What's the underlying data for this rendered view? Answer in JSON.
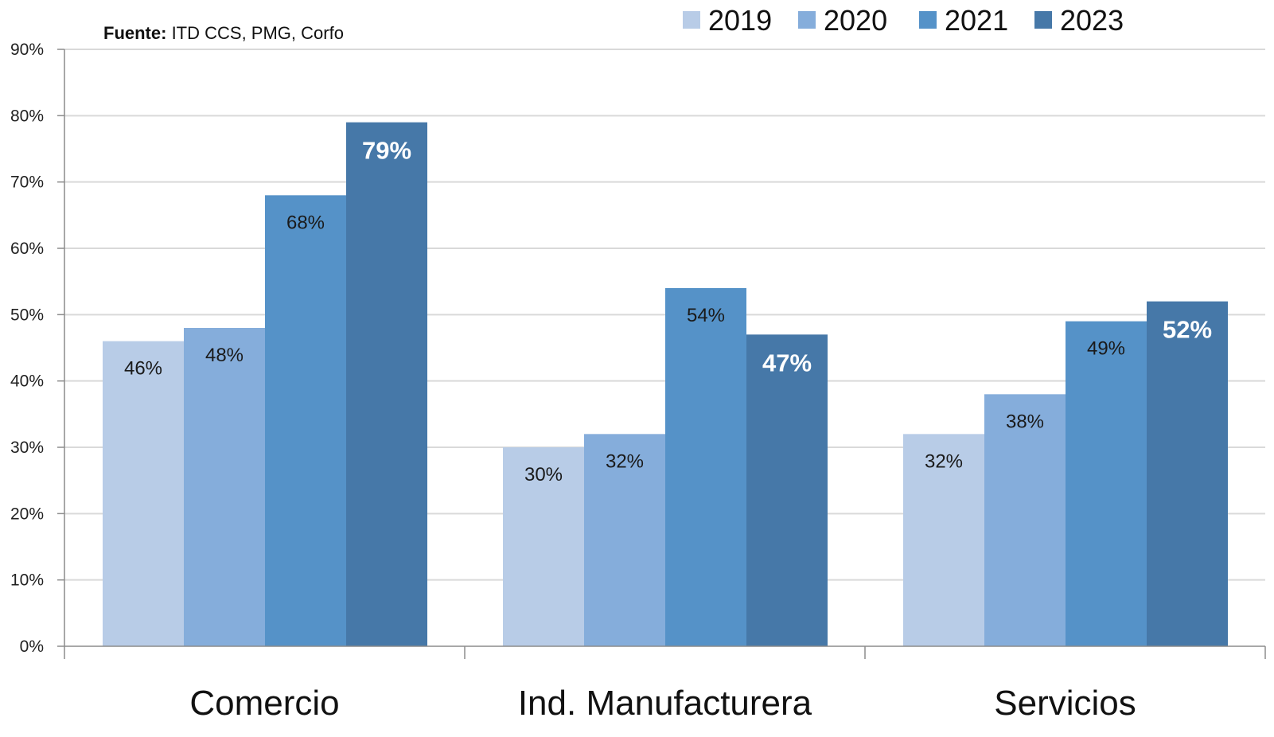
{
  "source": {
    "prefix": "Fuente:",
    "text": " ITD CCS, PMG, Corfo"
  },
  "colors": [
    "#b8cce7",
    "#85addb",
    "#5592c8",
    "#4678a8"
  ],
  "chart_data": {
    "type": "bar",
    "categories": [
      "Comercio",
      "Ind. Manufacturera",
      "Servicios"
    ],
    "series": [
      {
        "name": "2019",
        "values": [
          46,
          30,
          32
        ]
      },
      {
        "name": "2020",
        "values": [
          48,
          32,
          38
        ]
      },
      {
        "name": "2021",
        "values": [
          68,
          54,
          49
        ]
      },
      {
        "name": "2023",
        "values": [
          79,
          47,
          52
        ]
      }
    ],
    "data_labels": [
      [
        "46%",
        "30%",
        "32%"
      ],
      [
        "48%",
        "32%",
        "38%"
      ],
      [
        "68%",
        "54%",
        "49%"
      ],
      [
        "79%",
        "47%",
        "52%"
      ]
    ],
    "ylim": [
      0,
      90
    ],
    "yticks": [
      0,
      10,
      20,
      30,
      40,
      50,
      60,
      70,
      80,
      90
    ],
    "ytick_labels": [
      "0%",
      "10%",
      "20%",
      "30%",
      "40%",
      "50%",
      "60%",
      "70%",
      "80%",
      "90%"
    ],
    "xlabel": "",
    "ylabel": "",
    "grid": true,
    "legend_position": "top-right",
    "highlight_series": "2023"
  }
}
